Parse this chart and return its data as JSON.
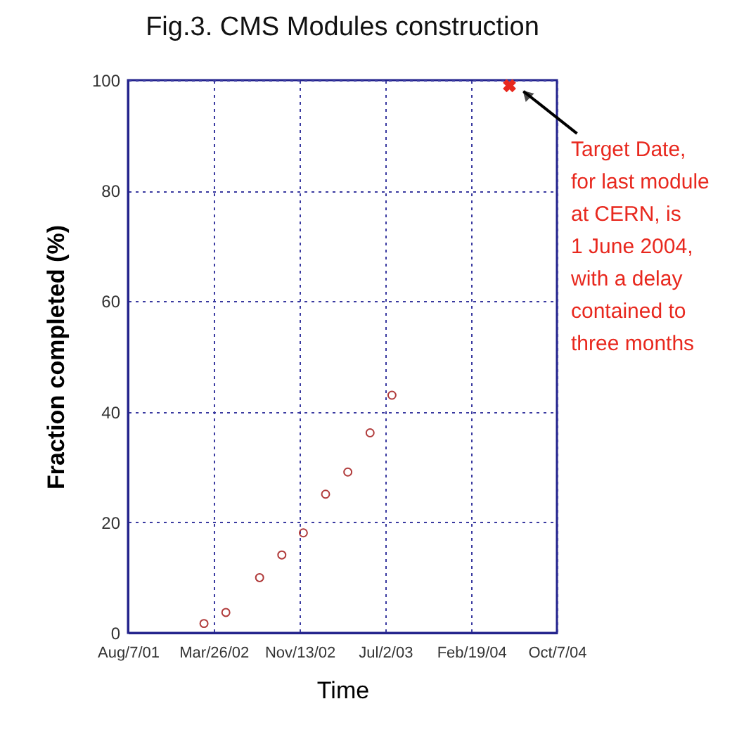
{
  "chart_data": {
    "type": "scatter",
    "title": "Fig.3.   CMS Modules construction",
    "xlabel": "Time",
    "ylabel": "Fraction completed (%)",
    "series": [
      {
        "color": "#b03a3a",
        "marker": "circle",
        "x": [
          "2002-02-28",
          "2002-04-28",
          "2002-07-28",
          "2002-09-26",
          "2002-11-23",
          "2003-01-22",
          "2003-03-23",
          "2003-05-22",
          "2003-07-20"
        ],
        "values": [
          1.7,
          3.7,
          10,
          14.1,
          18.1,
          25.1,
          29.1,
          36.2,
          43
        ]
      },
      {
        "color": "#e8281e",
        "marker": "cross",
        "x": [
          "2004-06-01"
        ],
        "values": [
          99
        ]
      }
    ],
    "annotations": [
      "Target Date,\nfor last module\nat CERN, is\n1 June 2004,\nwith a delay\ncontained to\nthree months"
    ],
    "xlim": [
      "2001-08-07",
      "2004-10-07"
    ],
    "xticks": [
      {
        "value": "2001-08-07",
        "label": "Aug/7/01"
      },
      {
        "value": "2002-03-26",
        "label": "Mar/26/02"
      },
      {
        "value": "2002-11-13",
        "label": "Nov/13/02"
      },
      {
        "value": "2003-07-02",
        "label": "Jul/2/03"
      },
      {
        "value": "2004-02-19",
        "label": "Feb/19/04"
      },
      {
        "value": "2004-10-07",
        "label": "Oct/7/04"
      }
    ],
    "ylim": [
      0,
      100
    ],
    "yticks": [
      0,
      20,
      40,
      60,
      80,
      100
    ],
    "grid": true
  }
}
